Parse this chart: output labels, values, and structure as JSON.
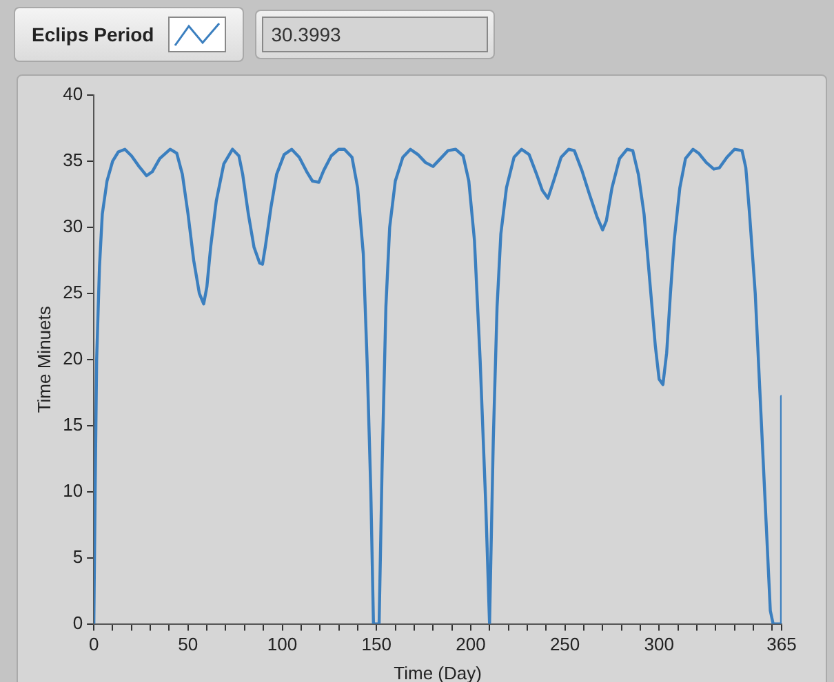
{
  "chart_data": {
    "type": "line",
    "xlabel": "Time (Day)",
    "ylabel": "Time Minuets",
    "annotations": [
      "30.3993"
    ],
    "xlim": [
      0,
      365
    ],
    "ylim": [
      0,
      40
    ],
    "xticks": [
      0,
      {
        "value": 10,
        "label": null
      },
      {
        "value": 20,
        "label": null
      },
      {
        "value": 30,
        "label": null
      },
      {
        "value": 40,
        "label": null
      },
      50,
      {
        "value": 60,
        "label": null
      },
      {
        "value": 70,
        "label": null
      },
      {
        "value": 80,
        "label": null
      },
      {
        "value": 90,
        "label": null
      },
      100,
      {
        "value": 110,
        "label": null
      },
      {
        "value": 120,
        "label": null
      },
      {
        "value": 130,
        "label": null
      },
      {
        "value": 140,
        "label": null
      },
      150,
      {
        "value": 160,
        "label": null
      },
      {
        "value": 170,
        "label": null
      },
      {
        "value": 180,
        "label": null
      },
      {
        "value": 190,
        "label": null
      },
      200,
      {
        "value": 210,
        "label": null
      },
      {
        "value": 220,
        "label": null
      },
      {
        "value": 230,
        "label": null
      },
      {
        "value": 240,
        "label": null
      },
      250,
      {
        "value": 260,
        "label": null
      },
      {
        "value": 270,
        "label": null
      },
      {
        "value": 280,
        "label": null
      },
      {
        "value": 290,
        "label": null
      },
      300,
      {
        "value": 310,
        "label": null
      },
      {
        "value": 320,
        "label": null
      },
      {
        "value": 330,
        "label": null
      },
      {
        "value": 340,
        "label": null
      },
      {
        "value": 350,
        "label": null
      },
      {
        "value": 360,
        "label": null
      },
      365
    ],
    "yticks": [
      0,
      5,
      10,
      15,
      20,
      25,
      30,
      35,
      40
    ],
    "grid": false,
    "legend": "top left",
    "marker": "none",
    "line_style": "solid",
    "series": [
      {
        "name": "Eclips Period",
        "color": "#3b7fbf",
        "x": [
          0,
          0.7,
          1.5,
          3,
          4.5,
          7,
          10,
          13,
          16.5,
          20,
          24,
          28,
          31,
          35,
          40.5,
          44,
          47,
          50,
          53,
          56,
          58.3,
          60,
          62,
          65,
          69,
          73.6,
          77,
          79,
          82,
          85,
          88,
          89.5,
          91,
          94,
          97,
          101,
          105,
          109,
          113,
          116,
          119.4,
          122,
          126,
          130,
          133,
          137,
          140,
          143,
          145,
          147,
          148.4,
          151.4,
          153,
          155,
          157,
          160,
          164,
          168,
          172,
          176,
          180,
          184,
          188,
          192,
          196,
          199,
          202,
          205,
          208,
          210,
          212,
          214,
          216,
          219,
          223,
          227,
          231,
          235,
          238,
          241,
          244,
          248,
          252,
          255,
          259,
          263,
          267,
          270,
          272,
          275,
          279,
          283,
          286,
          289,
          292,
          295,
          298,
          300,
          302,
          304,
          306,
          308,
          311,
          314,
          318,
          321,
          325,
          329,
          332,
          336,
          340,
          344,
          346,
          348,
          351,
          354,
          357,
          359,
          360.5,
          362.5,
          365,
          365
        ],
        "values": [
          0,
          10,
          20,
          27,
          31,
          33.5,
          35,
          35.7,
          35.9,
          35.4,
          34.6,
          33.9,
          34.2,
          35.2,
          35.9,
          35.6,
          34,
          31,
          27.5,
          25,
          24.2,
          25.5,
          28.5,
          32,
          34.8,
          35.9,
          35.4,
          34,
          31,
          28.5,
          27.3,
          27.2,
          28.5,
          31.5,
          34,
          35.5,
          35.9,
          35.3,
          34.2,
          33.5,
          33.4,
          34.3,
          35.4,
          35.9,
          35.9,
          35.3,
          33,
          28,
          20,
          10,
          0,
          0,
          12,
          24,
          30,
          33.5,
          35.3,
          35.9,
          35.5,
          34.9,
          34.6,
          35.2,
          35.8,
          35.9,
          35.4,
          33.5,
          29,
          20,
          9,
          0,
          14,
          24,
          29.5,
          33,
          35.3,
          35.9,
          35.5,
          34,
          32.8,
          32.2,
          33.5,
          35.3,
          35.9,
          35.8,
          34.3,
          32.5,
          30.8,
          29.8,
          30.5,
          33,
          35.2,
          35.9,
          35.8,
          34,
          31,
          26,
          21,
          18.5,
          18.1,
          20.5,
          25,
          29,
          33,
          35.2,
          35.9,
          35.6,
          34.9,
          34.4,
          34.5,
          35.3,
          35.9,
          35.8,
          34.5,
          31,
          25,
          16,
          7,
          1,
          0,
          0,
          0,
          17.2
        ]
      }
    ]
  }
}
